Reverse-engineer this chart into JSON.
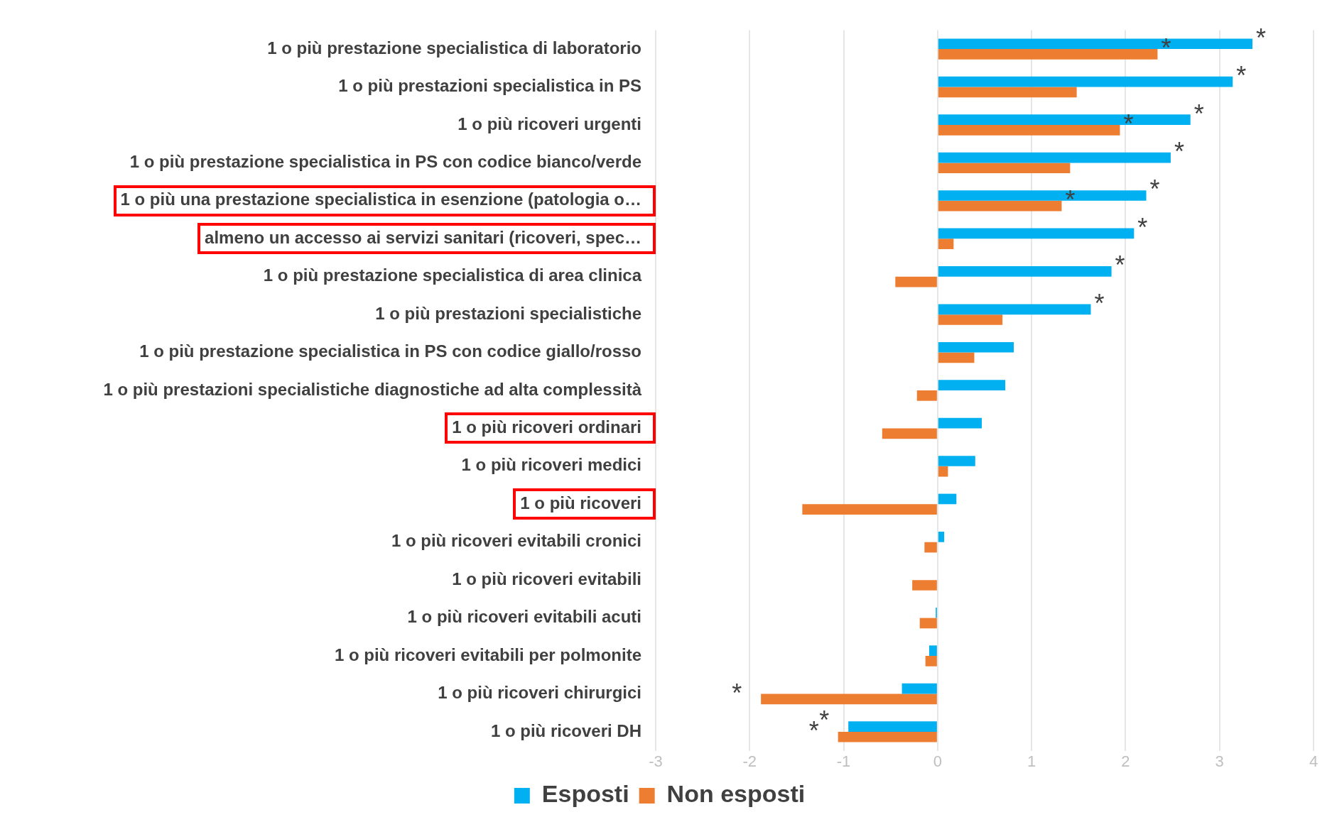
{
  "chart_data": {
    "type": "bar",
    "orientation": "horizontal",
    "categories": [
      "1 o più prestazione specialistica di laboratorio",
      "1 o più prestazioni specialistica in PS",
      "1 o più ricoveri urgenti",
      "1 o più prestazione specialistica in PS con codice bianco/verde",
      "1 o più una prestazione specialistica in esenzione (patologia o…",
      "almeno un accesso ai servizi sanitari (ricoveri, spec…",
      "1 o più prestazione specialistica di area clinica",
      "1 o più prestazioni specialistiche",
      "1 o più prestazione specialistica in PS con codice giallo/rosso",
      "1 o più prestazioni specialistiche diagnostiche ad alta complessità",
      "1 o più ricoveri ordinari",
      "1 o più ricoveri medici",
      "1 o più ricoveri",
      "1 o più ricoveri evitabili cronici",
      "1 o più ricoveri evitabili",
      "1 o più ricoveri evitabili acuti",
      "1 o più ricoveri evitabili per polmonite",
      "1 o più ricoveri chirurgici",
      "1 o più ricoveri DH"
    ],
    "series": [
      {
        "name": "Esposti",
        "color": "#00b0f0",
        "values": [
          3.35,
          3.14,
          2.69,
          2.48,
          2.22,
          2.09,
          1.85,
          1.63,
          0.81,
          0.72,
          0.47,
          0.4,
          0.2,
          0.07,
          0,
          -0.02,
          -0.09,
          -0.38,
          -0.95
        ]
      },
      {
        "name": "Non esposti",
        "color": "#ed7d31",
        "values": [
          2.34,
          1.48,
          1.94,
          1.41,
          1.32,
          0.17,
          -0.45,
          0.69,
          0.39,
          -0.22,
          -0.59,
          0.11,
          -1.44,
          -0.14,
          -0.27,
          -0.19,
          -0.13,
          -1.88,
          -1.06
        ]
      }
    ],
    "xlim": [
      -3,
      4
    ],
    "xticks": [
      -3,
      -2,
      -1,
      0,
      1,
      2,
      3,
      4
    ],
    "grid": "x",
    "legend": "bottom",
    "annotations": [
      {
        "text": "*",
        "x": 3.35,
        "y": "1 o più prestazione specialistica di laboratorio"
      },
      {
        "text": "*",
        "x": 2.34,
        "y": "1 o più prestazione specialistica di laboratorio"
      },
      {
        "text": "*",
        "x": 3.14,
        "y": "1 o più prestazioni specialistica in PS"
      },
      {
        "text": "*",
        "x": 2.69,
        "y": "1 o più ricoveri urgenti"
      },
      {
        "text": "*",
        "x": 1.94,
        "y": "1 o più ricoveri urgenti"
      },
      {
        "text": "*",
        "x": 2.48,
        "y": "1 o più prestazione specialistica in PS con codice bianco/verde"
      },
      {
        "text": "*",
        "x": 2.22,
        "y": "1 o più una prestazione specialistica in esenzione (patologia o…"
      },
      {
        "text": "*",
        "x": 1.32,
        "y": "1 o più una prestazione specialistica in esenzione (patologia o…"
      },
      {
        "text": "*",
        "x": 2.09,
        "y": "almeno un accesso ai servizi sanitari (ricoveri, spec…"
      },
      {
        "text": "*",
        "x": 1.85,
        "y": "1 o più prestazione specialistica di area clinica"
      },
      {
        "text": "*",
        "x": 1.63,
        "y": "1 o più prestazioni specialistiche"
      },
      {
        "text": "*",
        "x": -1.88,
        "y": "1 o più ricoveri chirurgici"
      },
      {
        "text": "*",
        "x": -0.95,
        "y": "1 o più ricoveri DH"
      },
      {
        "text": "*",
        "x": -1.06,
        "y": "1 o più ricoveri DH"
      }
    ]
  }
}
